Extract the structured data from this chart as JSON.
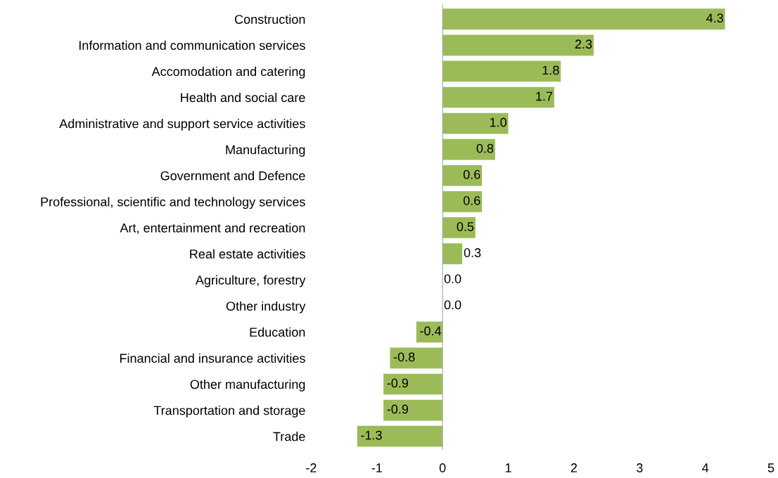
{
  "chart_data": {
    "type": "bar",
    "orientation": "horizontal",
    "categories": [
      "Construction",
      "Information and communication services",
      "Accomodation and catering",
      "Health and social care",
      "Administrative and support service activities",
      "Manufacturing",
      "Government and Defence",
      "Professional, scientific and technology services",
      "Art, entertainment and recreation",
      "Real estate activities",
      "Agriculture, forestry",
      "Other industry",
      "Education",
      "Financial and insurance activities",
      "Other manufacturing",
      "Transportation and storage",
      "Trade"
    ],
    "values": [
      4.3,
      2.3,
      1.8,
      1.7,
      1.0,
      0.8,
      0.6,
      0.6,
      0.5,
      0.3,
      0.0,
      0.0,
      -0.4,
      -0.8,
      -0.9,
      -0.9,
      -1.3
    ],
    "value_labels": [
      "4.3",
      "2.3",
      "1.8",
      "1.7",
      "1.0",
      "0.8",
      "0.6",
      "0.6",
      "0.5",
      "0.3",
      "0.0",
      "0.0",
      "-0.4",
      "-0.8",
      "-0.9",
      "-0.9",
      "-1.3"
    ],
    "color": "#9bbb59",
    "xlim": [
      -2,
      5
    ],
    "xticks": [
      -2,
      -1,
      0,
      1,
      2,
      3,
      4,
      5
    ]
  }
}
